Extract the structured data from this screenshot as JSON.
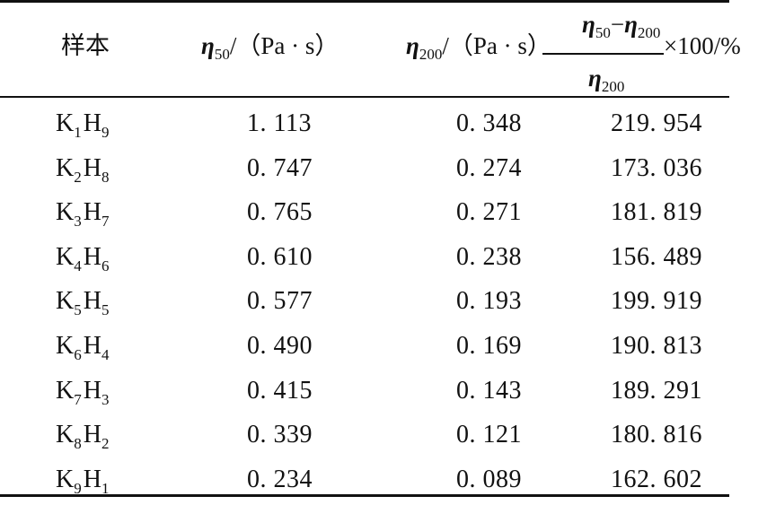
{
  "headers": {
    "sample": "样本",
    "eta": "η",
    "sub50": "50",
    "sub200": "200",
    "unit": "/（Pa · s）",
    "minus": "−",
    "suffix": "×100/%"
  },
  "rows": [
    {
      "k": "K",
      "ks": "1",
      "h": "H",
      "hs": "9",
      "v1": "1. 113",
      "v2": "0. 348",
      "v3": "219. 954"
    },
    {
      "k": "K",
      "ks": "2",
      "h": "H",
      "hs": "8",
      "v1": "0. 747",
      "v2": "0. 274",
      "v3": "173. 036"
    },
    {
      "k": "K",
      "ks": "3",
      "h": "H",
      "hs": "7",
      "v1": "0. 765",
      "v2": "0. 271",
      "v3": "181. 819"
    },
    {
      "k": "K",
      "ks": "4",
      "h": "H",
      "hs": "6",
      "v1": "0. 610",
      "v2": "0. 238",
      "v3": "156. 489"
    },
    {
      "k": "K",
      "ks": "5",
      "h": "H",
      "hs": "5",
      "v1": "0. 577",
      "v2": "0. 193",
      "v3": "199. 919"
    },
    {
      "k": "K",
      "ks": "6",
      "h": "H",
      "hs": "4",
      "v1": "0. 490",
      "v2": "0. 169",
      "v3": "190. 813"
    },
    {
      "k": "K",
      "ks": "7",
      "h": "H",
      "hs": "3",
      "v1": "0. 415",
      "v2": "0. 143",
      "v3": "189. 291"
    },
    {
      "k": "K",
      "ks": "8",
      "h": "H",
      "hs": "2",
      "v1": "0. 339",
      "v2": "0. 121",
      "v3": "180. 816"
    },
    {
      "k": "K",
      "ks": "9",
      "h": "H",
      "hs": "1",
      "v1": "0. 234",
      "v2": "0. 089",
      "v3": "162. 602"
    }
  ]
}
